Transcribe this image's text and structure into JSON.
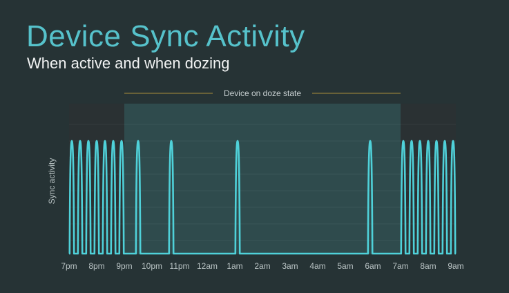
{
  "header": {
    "title": "Device Sync Activity",
    "subtitle": "When active and when dozing"
  },
  "chart_data": {
    "type": "line",
    "title": "Device Sync Activity",
    "subtitle": "When active and when dozing",
    "xlabel": "",
    "ylabel": "Sync activity",
    "x_ticks": [
      "7pm",
      "8pm",
      "9pm",
      "10pm",
      "11pm",
      "12am",
      "1am",
      "2am",
      "3am",
      "4am",
      "5am",
      "6am",
      "7am",
      "8am",
      "9am"
    ],
    "x_range_hours": [
      0,
      14
    ],
    "y_range": [
      0,
      1
    ],
    "grid": true,
    "annotation": {
      "label": "Device on doze state",
      "start_hour": 2,
      "end_hour": 12
    },
    "series": [
      {
        "color": "#4fd1d9",
        "sync_bursts_hours": [
          0.1,
          0.4,
          0.7,
          1.0,
          1.3,
          1.6,
          1.9,
          2.5,
          3.7,
          6.1,
          10.9,
          12.1,
          12.4,
          12.7,
          13.0,
          13.3,
          13.6,
          13.9
        ],
        "burst_height": 1
      }
    ],
    "colors": {
      "line": "#4fd1d9",
      "doze_region": "#2f4b4d",
      "active_region": "#2a3133",
      "annotation_line": "#a98f3a"
    }
  }
}
